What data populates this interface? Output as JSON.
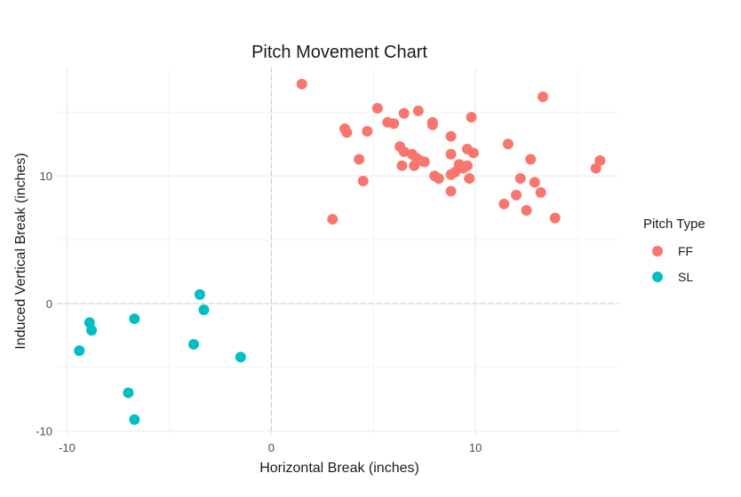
{
  "chart_data": {
    "type": "scatter",
    "title": "Pitch Movement Chart",
    "xlabel": "Horizontal Break (inches)",
    "ylabel": "Induced Vertical Break (inches)",
    "xlim": [
      -10.5,
      17
    ],
    "ylim": [
      -10.3,
      18.5
    ],
    "x_ticks": [
      -10,
      0,
      10
    ],
    "y_ticks": [
      -10,
      0,
      10
    ],
    "grid": true,
    "reference_lines": {
      "x": 0,
      "y": 0
    },
    "legend": {
      "title": "Pitch Type",
      "placement": "right"
    },
    "series": [
      {
        "name": "FF",
        "color": "#F8766D",
        "points": [
          [
            1.5,
            17.2
          ],
          [
            3.0,
            6.6
          ],
          [
            3.6,
            13.7
          ],
          [
            3.7,
            13.4
          ],
          [
            4.3,
            11.3
          ],
          [
            4.5,
            9.6
          ],
          [
            4.7,
            13.5
          ],
          [
            5.2,
            15.3
          ],
          [
            5.7,
            14.2
          ],
          [
            6.0,
            14.1
          ],
          [
            6.3,
            12.3
          ],
          [
            6.5,
            11.9
          ],
          [
            6.5,
            14.9
          ],
          [
            6.4,
            10.8
          ],
          [
            6.9,
            11.7
          ],
          [
            7.0,
            10.8
          ],
          [
            7.1,
            11.4
          ],
          [
            7.3,
            11.2
          ],
          [
            7.2,
            15.1
          ],
          [
            7.5,
            11.1
          ],
          [
            7.9,
            14.2
          ],
          [
            7.9,
            14.0
          ],
          [
            8.0,
            10.0
          ],
          [
            8.2,
            9.8
          ],
          [
            8.8,
            13.1
          ],
          [
            8.8,
            11.7
          ],
          [
            8.8,
            10.1
          ],
          [
            8.8,
            8.8
          ],
          [
            9.0,
            10.3
          ],
          [
            9.2,
            10.9
          ],
          [
            9.4,
            10.6
          ],
          [
            9.6,
            10.8
          ],
          [
            9.6,
            12.1
          ],
          [
            9.7,
            9.8
          ],
          [
            9.9,
            11.8
          ],
          [
            9.8,
            14.6
          ],
          [
            11.4,
            7.8
          ],
          [
            11.6,
            12.5
          ],
          [
            12.0,
            8.5
          ],
          [
            12.2,
            9.8
          ],
          [
            12.5,
            7.3
          ],
          [
            12.7,
            11.3
          ],
          [
            12.9,
            9.5
          ],
          [
            13.2,
            8.7
          ],
          [
            13.3,
            16.2
          ],
          [
            13.9,
            6.7
          ],
          [
            15.9,
            10.6
          ],
          [
            16.1,
            11.2
          ]
        ]
      },
      {
        "name": "SL",
        "color": "#00BFC4",
        "points": [
          [
            -9.4,
            -3.7
          ],
          [
            -8.9,
            -1.5
          ],
          [
            -8.8,
            -2.1
          ],
          [
            -7.0,
            -7.0
          ],
          [
            -6.7,
            -1.2
          ],
          [
            -6.7,
            -9.1
          ],
          [
            -3.8,
            -3.2
          ],
          [
            -3.5,
            0.7
          ],
          [
            -3.3,
            -0.5
          ],
          [
            -1.5,
            -4.2
          ]
        ]
      }
    ]
  }
}
